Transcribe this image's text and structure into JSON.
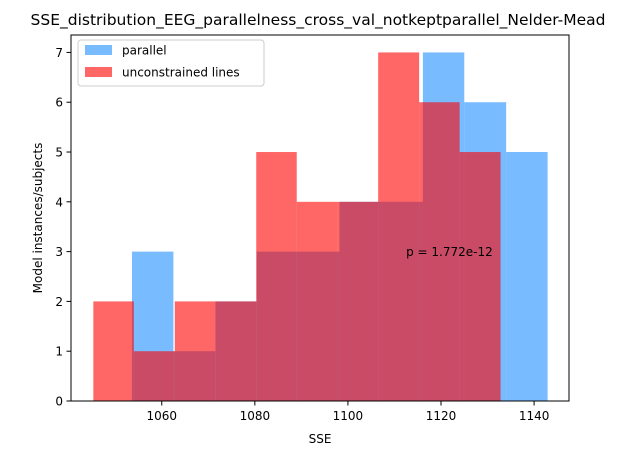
{
  "chart_data": {
    "type": "bar",
    "title": "SSE_distribution_EEG_parallelness_cross_val_notkeptparallel_Nelder-Mead",
    "xlabel": "SSE",
    "ylabel": "Model instances/subjects",
    "xlim": [
      1040.5,
      1147.5
    ],
    "ylim": [
      0,
      7.35
    ],
    "xticks": [
      1060,
      1080,
      1100,
      1120,
      1140
    ],
    "yticks": [
      0,
      1,
      2,
      3,
      4,
      5,
      6,
      7
    ],
    "legend": {
      "position": "top-left"
    },
    "series": [
      {
        "name": "parallel",
        "color": "#1E90FF",
        "opacity": 0.6,
        "bins": [
          {
            "x0": 1053.6,
            "x1": 1062.5,
            "count": 3
          },
          {
            "x0": 1062.5,
            "x1": 1071.5,
            "count": 1
          },
          {
            "x0": 1071.5,
            "x1": 1080.4,
            "count": 2
          },
          {
            "x0": 1080.4,
            "x1": 1089.3,
            "count": 3
          },
          {
            "x0": 1089.3,
            "x1": 1098.2,
            "count": 3
          },
          {
            "x0": 1098.2,
            "x1": 1107.2,
            "count": 4
          },
          {
            "x0": 1107.2,
            "x1": 1116.1,
            "count": 4
          },
          {
            "x0": 1116.1,
            "x1": 1125.0,
            "count": 7
          },
          {
            "x0": 1125.0,
            "x1": 1134.0,
            "count": 6
          },
          {
            "x0": 1134.0,
            "x1": 1142.9,
            "count": 5
          }
        ]
      },
      {
        "name": "unconstrained lines",
        "color": "#FF0000",
        "opacity": 0.6,
        "bins": [
          {
            "x0": 1045.3,
            "x1": 1054.0,
            "count": 2
          },
          {
            "x0": 1054.0,
            "x1": 1062.8,
            "count": 1
          },
          {
            "x0": 1062.8,
            "x1": 1071.5,
            "count": 2
          },
          {
            "x0": 1071.5,
            "x1": 1080.3,
            "count": 2
          },
          {
            "x0": 1080.3,
            "x1": 1089.0,
            "count": 5
          },
          {
            "x0": 1089.0,
            "x1": 1097.8,
            "count": 4
          },
          {
            "x0": 1097.8,
            "x1": 1106.5,
            "count": 4
          },
          {
            "x0": 1106.5,
            "x1": 1115.3,
            "count": 7
          },
          {
            "x0": 1115.3,
            "x1": 1124.0,
            "count": 6
          },
          {
            "x0": 1124.0,
            "x1": 1132.8,
            "count": 5
          }
        ]
      }
    ],
    "annotations": [
      {
        "text": "p = 1.772e-12",
        "x": 1112.5,
        "y": 3
      }
    ]
  }
}
